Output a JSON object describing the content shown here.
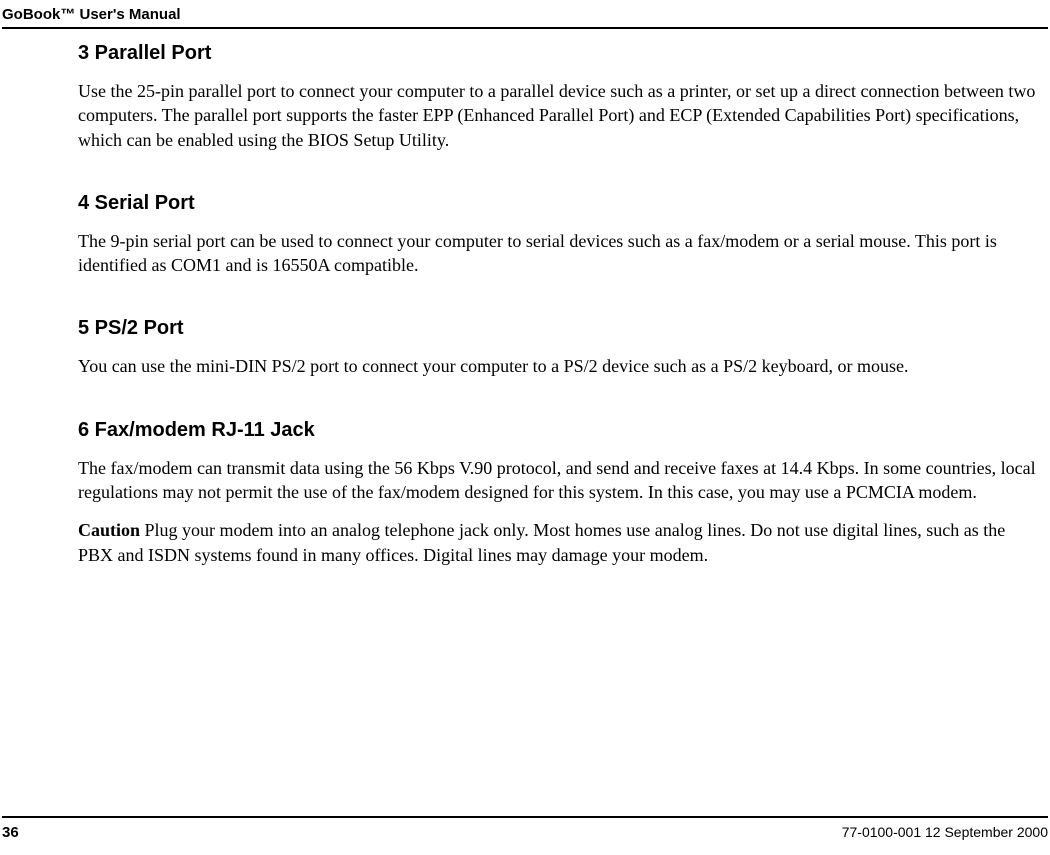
{
  "header": {
    "title": "GoBook™ User's Manual"
  },
  "sections": [
    {
      "heading": "3  Parallel Port",
      "paragraphs": [
        "Use the 25-pin parallel port to connect your computer to a parallel device such as a printer, or set up a direct connection between two computers. The parallel port supports the faster EPP (Enhanced Parallel Port) and ECP (Extended Capabilities Port) specifications, which can be enabled using the BIOS Setup Utility."
      ]
    },
    {
      "heading": "4  Serial Port",
      "paragraphs": [
        "The 9-pin serial port can be used to connect your computer to serial devices such as a fax/modem or a serial mouse. This port is identified as COM1 and is 16550A compatible."
      ]
    },
    {
      "heading": "5  PS/2 Port",
      "paragraphs": [
        "You can use the mini-DIN PS/2 port to connect your computer to a PS/2 device such as a PS/2 keyboard, or mouse."
      ]
    },
    {
      "heading": "6  Fax/modem RJ-11 Jack",
      "paragraphs": [
        "The fax/modem can transmit data using the 56 Kbps V.90 protocol, and send and receive faxes at 14.4 Kbps. In some countries, local regulations may not permit the use of the fax/modem designed for this system. In this case, you may use a PCMCIA modem."
      ],
      "caution_label": "Caution",
      "caution_text": "  Plug your modem into an analog telephone jack only. Most homes use analog lines. Do not use digital lines, such as the PBX and ISDN systems found in many offices. Digital lines may damage your modem."
    }
  ],
  "footer": {
    "page_number": "36",
    "doc_id": "77-0100-001   12 September 2000"
  },
  "styles": {
    "background_color": "#ffffff",
    "text_color": "#000000",
    "heading_font": "Arial",
    "heading_fontsize_pt": 15,
    "body_font": "Times New Roman",
    "body_fontsize_pt": 13.5,
    "rule_color": "#000000"
  }
}
